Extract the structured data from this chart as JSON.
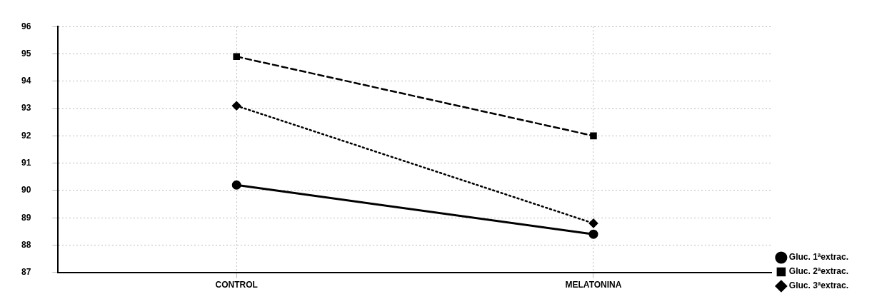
{
  "chart_data": {
    "type": "line",
    "categories": [
      "CONTROL",
      "MELATONINA"
    ],
    "series": [
      {
        "name": "Gluc. 1ªextrac.",
        "color": "#000000",
        "values": [
          90.2,
          88.4
        ],
        "marker": "circle",
        "line_style": "solid"
      },
      {
        "name": "Gluc. 2ªextrac.",
        "color": "#000000",
        "values": [
          94.9,
          92.0
        ],
        "marker": "square",
        "line_style": "dashed"
      },
      {
        "name": "Gluc. 3ªextrac.",
        "color": "#000000",
        "values": [
          93.1,
          88.8
        ],
        "marker": "diamond",
        "line_style": "dotted"
      }
    ],
    "ylim": [
      87,
      96
    ],
    "yticks": [
      87,
      88,
      89,
      90,
      91,
      92,
      93,
      94,
      95,
      96
    ],
    "grid": true,
    "legend": "bottom right"
  }
}
